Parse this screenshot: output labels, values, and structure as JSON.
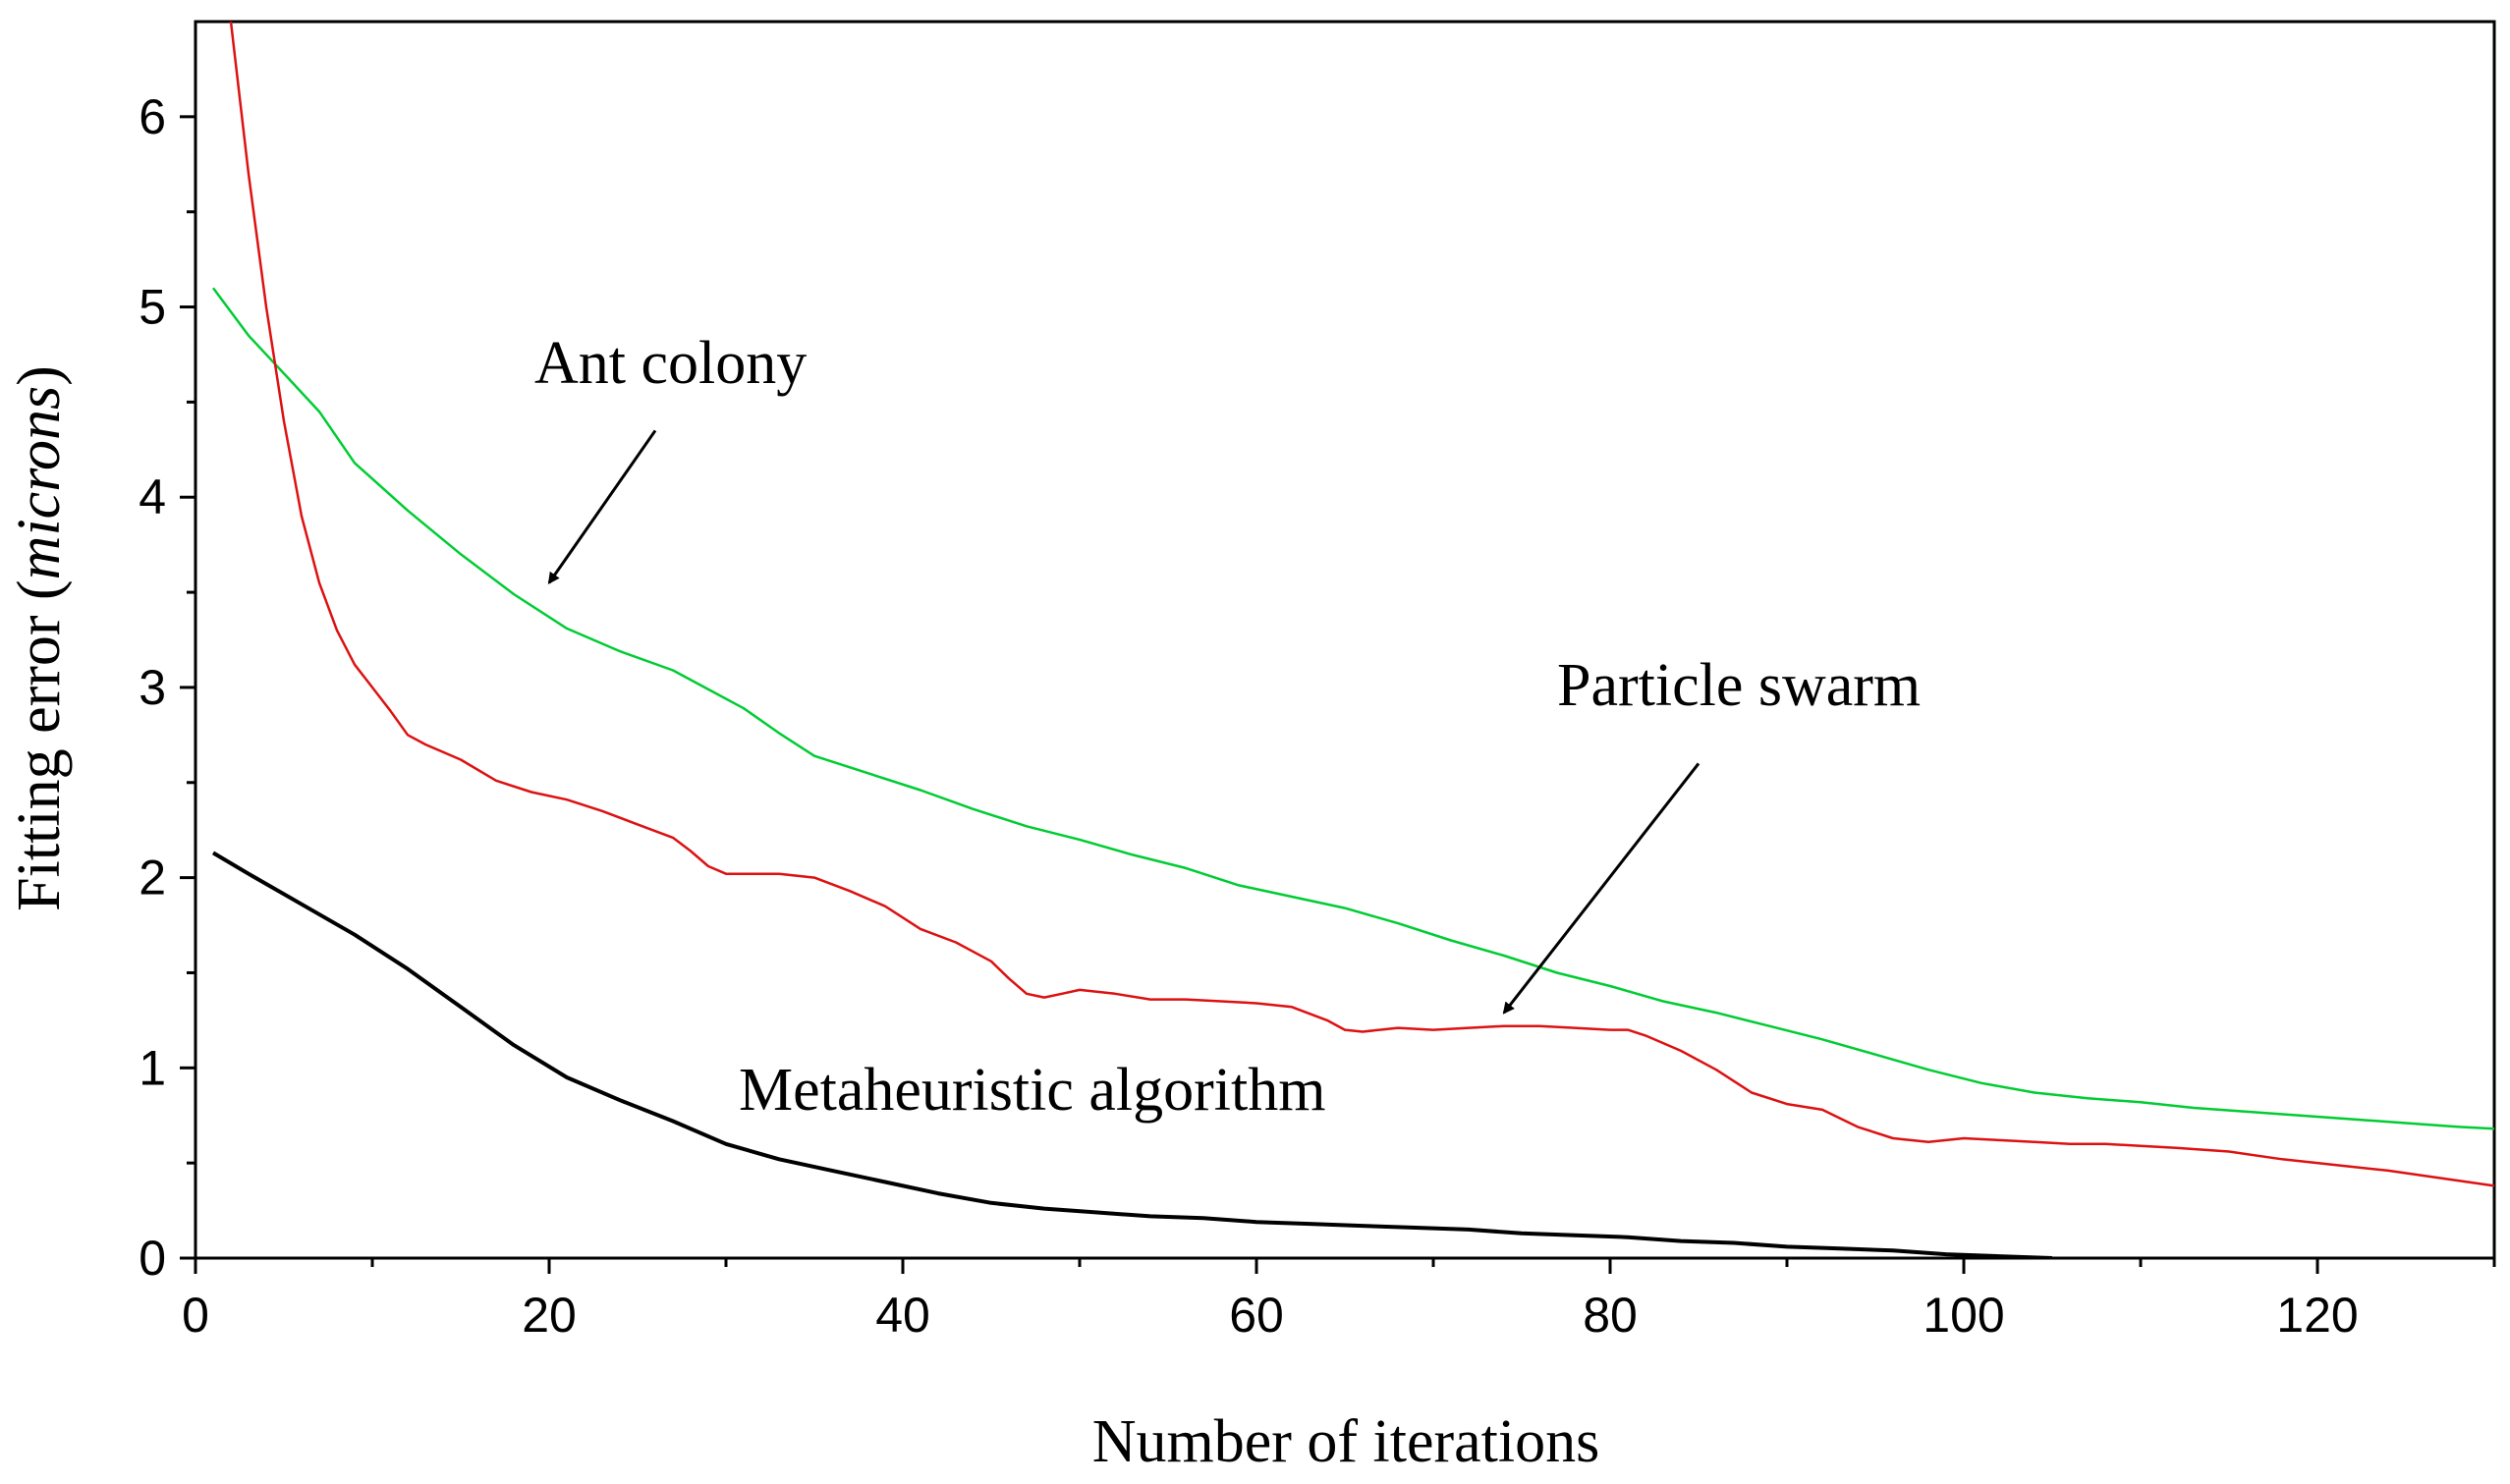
{
  "chart_data": {
    "type": "line",
    "title": "",
    "xlabel": "Number of iterations",
    "ylabel_prefix": "Fitting error (",
    "ylabel_italic": "microns",
    "ylabel_suffix": ")",
    "xlim": [
      0,
      130
    ],
    "ylim": [
      0,
      6.5
    ],
    "x_ticks": [
      0,
      20,
      40,
      60,
      80,
      100,
      120
    ],
    "x_minor_ticks": [
      10,
      30,
      50,
      70,
      90,
      110,
      130
    ],
    "y_ticks": [
      0,
      1,
      2,
      3,
      4,
      5,
      6
    ],
    "y_minor_ticks": [
      0.5,
      1.5,
      2.5,
      3.5,
      4.5,
      5.5
    ],
    "grid": false,
    "legend": "none",
    "series": [
      {
        "name": "Ant colony",
        "color": "#00cc33",
        "x": [
          1,
          3,
          5,
          7,
          9,
          12,
          15,
          18,
          21,
          24,
          27,
          29,
          31,
          33,
          35,
          38,
          41,
          44,
          47,
          50,
          53,
          56,
          59,
          62,
          65,
          68,
          71,
          74,
          77,
          80,
          83,
          86,
          89,
          92,
          95,
          98,
          101,
          104,
          107,
          110,
          113,
          116,
          119,
          122,
          125,
          128,
          130
        ],
        "values": [
          5.1,
          4.85,
          4.65,
          4.45,
          4.18,
          3.93,
          3.7,
          3.49,
          3.31,
          3.19,
          3.09,
          2.99,
          2.89,
          2.76,
          2.64,
          2.55,
          2.46,
          2.36,
          2.27,
          2.2,
          2.12,
          2.05,
          1.96,
          1.9,
          1.84,
          1.76,
          1.67,
          1.59,
          1.5,
          1.43,
          1.35,
          1.29,
          1.22,
          1.15,
          1.07,
          0.99,
          0.92,
          0.87,
          0.84,
          0.82,
          0.79,
          0.77,
          0.75,
          0.73,
          0.71,
          0.69,
          0.68
        ]
      },
      {
        "name": "Particle swarm",
        "color": "#dd1111",
        "x": [
          2,
          3,
          4,
          5,
          6,
          7,
          8,
          9,
          10,
          11,
          12,
          13,
          15,
          17,
          19,
          21,
          23,
          25,
          27,
          28,
          29,
          30,
          33,
          35,
          37,
          39,
          41,
          43,
          45,
          46,
          47,
          48,
          49,
          50,
          52,
          54,
          56,
          58,
          60,
          62,
          64,
          65,
          66,
          68,
          70,
          72,
          74,
          76,
          78,
          80,
          81,
          82,
          84,
          86,
          88,
          90,
          92,
          94,
          96,
          98,
          100,
          102,
          104,
          106,
          108,
          110,
          112,
          115,
          118,
          121,
          124,
          127,
          130
        ],
        "values": [
          6.5,
          5.7,
          5.0,
          4.4,
          3.9,
          3.55,
          3.3,
          3.12,
          3.0,
          2.88,
          2.75,
          2.7,
          2.62,
          2.51,
          2.45,
          2.41,
          2.35,
          2.28,
          2.21,
          2.14,
          2.06,
          2.02,
          2.02,
          2.0,
          1.93,
          1.85,
          1.73,
          1.66,
          1.56,
          1.47,
          1.39,
          1.37,
          1.39,
          1.41,
          1.39,
          1.36,
          1.36,
          1.35,
          1.34,
          1.32,
          1.25,
          1.2,
          1.19,
          1.21,
          1.2,
          1.21,
          1.22,
          1.22,
          1.21,
          1.2,
          1.2,
          1.17,
          1.09,
          0.99,
          0.87,
          0.81,
          0.78,
          0.69,
          0.63,
          0.61,
          0.63,
          0.62,
          0.61,
          0.6,
          0.6,
          0.59,
          0.58,
          0.56,
          0.52,
          0.49,
          0.46,
          0.42,
          0.38
        ]
      },
      {
        "name": "Metaheuristic algorithm",
        "color": "#000000",
        "x": [
          1,
          3,
          6,
          9,
          12,
          15,
          18,
          21,
          24,
          27,
          30,
          33,
          36,
          39,
          42,
          45,
          48,
          51,
          54,
          57,
          60,
          63,
          66,
          69,
          72,
          75,
          78,
          81,
          84,
          87,
          90,
          93,
          96,
          99,
          102,
          105
        ],
        "values": [
          2.13,
          2.02,
          1.86,
          1.7,
          1.52,
          1.32,
          1.12,
          0.95,
          0.83,
          0.72,
          0.6,
          0.52,
          0.46,
          0.4,
          0.34,
          0.29,
          0.26,
          0.24,
          0.22,
          0.21,
          0.19,
          0.18,
          0.17,
          0.16,
          0.15,
          0.13,
          0.12,
          0.11,
          0.09,
          0.08,
          0.06,
          0.05,
          0.04,
          0.02,
          0.01,
          0.0
        ]
      }
    ],
    "annotations": [
      {
        "text": "Ant colony",
        "target_series": "Ant colony",
        "arrow_to": [
          20,
          3.55
        ],
        "arrow_from": [
          26,
          4.35
        ]
      },
      {
        "text": "Particle swarm",
        "target_series": "Particle swarm",
        "arrow_to": [
          74,
          1.29
        ],
        "arrow_from": [
          85,
          2.6
        ]
      },
      {
        "text": "Metaheuristic algorithm",
        "target_series": "Metaheuristic algorithm"
      }
    ]
  }
}
